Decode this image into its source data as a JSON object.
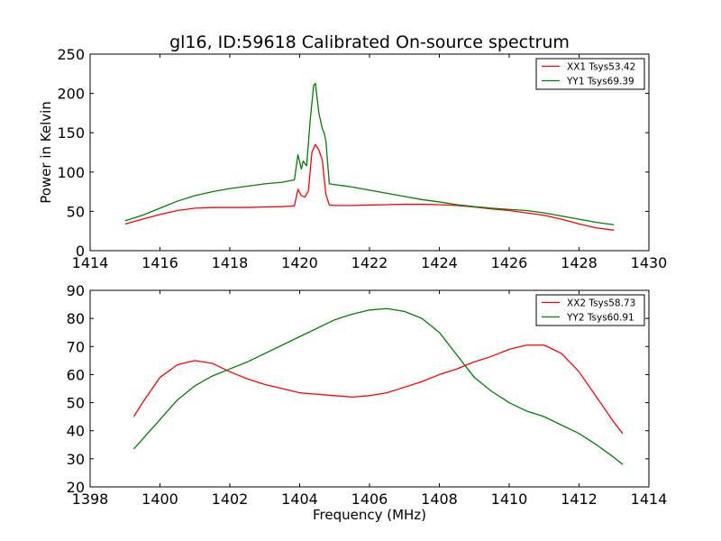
{
  "chart_data": [
    {
      "type": "line",
      "title": "gl16, ID:59618 Calibrated On-source spectrum",
      "xlabel": "",
      "ylabel": "Power in Kelvin",
      "xlim": [
        1414,
        1430
      ],
      "ylim": [
        0,
        250
      ],
      "xticks": [
        1414,
        1416,
        1418,
        1420,
        1422,
        1424,
        1426,
        1428,
        1430
      ],
      "yticks": [
        0,
        50,
        100,
        150,
        200,
        250
      ],
      "grid": false,
      "legend_position": "top-right",
      "series": [
        {
          "name": "XX1 Tsys53.42",
          "color": "#ff0000",
          "x": [
            1415.0,
            1415.5,
            1416.0,
            1416.5,
            1417.0,
            1417.5,
            1418.0,
            1418.5,
            1419.0,
            1419.5,
            1419.85,
            1419.95,
            1420.05,
            1420.15,
            1420.25,
            1420.35,
            1420.45,
            1420.55,
            1420.65,
            1420.75,
            1420.85,
            1421.0,
            1421.5,
            1422.0,
            1422.5,
            1423.0,
            1423.5,
            1424.0,
            1424.5,
            1425.0,
            1425.5,
            1426.0,
            1426.5,
            1427.0,
            1427.5,
            1428.0,
            1428.5,
            1429.0
          ],
          "y": [
            34,
            40,
            46,
            51,
            54,
            55,
            55,
            55,
            55.5,
            56,
            57,
            78,
            70,
            68,
            76,
            125,
            135,
            128,
            115,
            72,
            58,
            57.5,
            57.5,
            58,
            58.5,
            59,
            59,
            58.5,
            57.5,
            55.5,
            53,
            51,
            48,
            45,
            40,
            34,
            29,
            26
          ]
        },
        {
          "name": "YY1 Tsys69.39",
          "color": "#008000",
          "x": [
            1415.0,
            1415.5,
            1416.0,
            1416.5,
            1417.0,
            1417.5,
            1418.0,
            1418.5,
            1419.0,
            1419.5,
            1419.85,
            1419.95,
            1420.05,
            1420.1,
            1420.2,
            1420.3,
            1420.4,
            1420.45,
            1420.55,
            1420.65,
            1420.7,
            1420.75,
            1420.85,
            1421.0,
            1421.5,
            1422.0,
            1422.5,
            1423.0,
            1423.5,
            1424.0,
            1424.5,
            1425.0,
            1425.5,
            1426.0,
            1426.5,
            1427.0,
            1427.5,
            1428.0,
            1428.5,
            1429.0
          ],
          "y": [
            38,
            45,
            54,
            63,
            70,
            75,
            79,
            82,
            85,
            87,
            90,
            122,
            104,
            114,
            108,
            165,
            210,
            213,
            175,
            155,
            150,
            140,
            85,
            84,
            81,
            77,
            73,
            69,
            65,
            62,
            58.5,
            56,
            54,
            52.5,
            51,
            48,
            44,
            40,
            36,
            33
          ]
        }
      ]
    },
    {
      "type": "line",
      "title": "",
      "xlabel": "Frequency (MHz)",
      "ylabel": "",
      "xlim": [
        1398,
        1414
      ],
      "ylim": [
        20,
        90
      ],
      "xticks": [
        1398,
        1400,
        1402,
        1404,
        1406,
        1408,
        1410,
        1412,
        1414
      ],
      "yticks": [
        20,
        30,
        40,
        50,
        60,
        70,
        80,
        90
      ],
      "grid": false,
      "legend_position": "top-right",
      "series": [
        {
          "name": "XX2 Tsys58.73",
          "color": "#ff0000",
          "x": [
            1399.25,
            1399.5,
            1400.0,
            1400.5,
            1401.0,
            1401.5,
            1402.0,
            1402.5,
            1403.0,
            1403.5,
            1404.0,
            1404.5,
            1405.0,
            1405.5,
            1406.0,
            1406.5,
            1407.0,
            1407.5,
            1408.0,
            1408.5,
            1409.0,
            1409.5,
            1410.0,
            1410.5,
            1411.0,
            1411.5,
            1412.0,
            1412.5,
            1413.0,
            1413.25
          ],
          "y": [
            45,
            50,
            59,
            63.5,
            65,
            64,
            61,
            58.5,
            56.5,
            55,
            53.5,
            53,
            52.5,
            52,
            52.5,
            53.5,
            55.5,
            57.5,
            60,
            62,
            64.5,
            66.5,
            69,
            70.5,
            70.5,
            67.5,
            61,
            52,
            43,
            39
          ]
        },
        {
          "name": "YY2 Tsys60.91",
          "color": "#008000",
          "x": [
            1399.25,
            1399.5,
            1400.0,
            1400.5,
            1401.0,
            1401.5,
            1402.0,
            1402.5,
            1403.0,
            1403.5,
            1404.0,
            1404.5,
            1405.0,
            1405.5,
            1406.0,
            1406.5,
            1407.0,
            1407.5,
            1408.0,
            1408.5,
            1409.0,
            1409.5,
            1410.0,
            1410.5,
            1411.0,
            1411.5,
            1412.0,
            1412.5,
            1413.0,
            1413.25
          ],
          "y": [
            33.5,
            37,
            44,
            51,
            56,
            59.5,
            62,
            64.5,
            67.5,
            70.5,
            73.5,
            76.5,
            79.5,
            81.5,
            83,
            83.5,
            82.5,
            80,
            75,
            67,
            59,
            54,
            50,
            47,
            45,
            42,
            39,
            35,
            30.5,
            28
          ]
        }
      ]
    }
  ]
}
